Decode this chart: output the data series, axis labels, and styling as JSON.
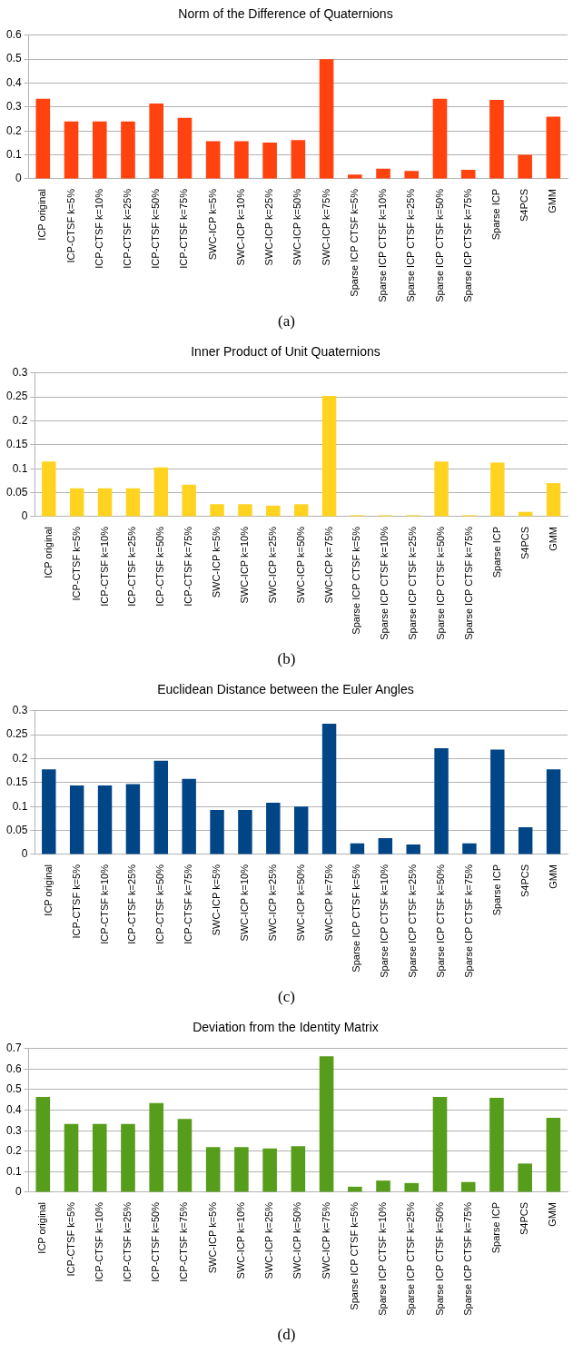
{
  "chart_data": [
    {
      "type": "bar",
      "title": "Norm of the Difference of Quaternions",
      "categories": [
        "ICP original",
        "ICP-CTSF k=5%",
        "ICP-CTSF k=10%",
        "ICP-CTSF k=25%",
        "ICP-CTSF k=50%",
        "ICP-CTSF k=75%",
        "SWC-ICP k=5%",
        "SWC-ICP k=10%",
        "SWC-ICP k=25%",
        "SWC-ICP k=50%",
        "SWC-ICP k=75%",
        "Sparse ICP CTSF k=5%",
        "Sparse ICP CTSF k=10%",
        "Sparse ICP CTSF k=25%",
        "Sparse ICP CTSF k=50%",
        "Sparse ICP CTSF k=75%",
        "Sparse ICP",
        "S4PCS",
        "GMM"
      ],
      "values": [
        0.335,
        0.24,
        0.24,
        0.24,
        0.315,
        0.255,
        0.157,
        0.157,
        0.152,
        0.162,
        0.5,
        0.018,
        0.043,
        0.033,
        0.335,
        0.038,
        0.33,
        0.1,
        0.26
      ],
      "color": "#ff420e",
      "ylim": [
        0,
        0.6
      ],
      "yticks": [
        0,
        0.1,
        0.2,
        0.3,
        0.4,
        0.5,
        0.6
      ],
      "grid": "y",
      "legend": false,
      "annotations": [
        "(a)"
      ]
    },
    {
      "type": "bar",
      "title": "Inner Product of Unit Quaternions",
      "categories": [
        "ICP original",
        "ICP-CTSF k=5%",
        "ICP-CTSF k=10%",
        "ICP-CTSF k=25%",
        "ICP-CTSF k=50%",
        "ICP-CTSF k=75%",
        "SWC-ICP k=5%",
        "SWC-ICP k=10%",
        "SWC-ICP k=25%",
        "SWC-ICP k=50%",
        "SWC-ICP k=75%",
        "Sparse ICP CTSF k=5%",
        "Sparse ICP CTSF k=10%",
        "Sparse ICP CTSF k=25%",
        "Sparse ICP CTSF k=50%",
        "Sparse ICP CTSF k=75%",
        "Sparse ICP",
        "S4PCS",
        "GMM"
      ],
      "values": [
        0.115,
        0.059,
        0.059,
        0.059,
        0.103,
        0.067,
        0.026,
        0.026,
        0.023,
        0.026,
        0.252,
        0.003,
        0.003,
        0.003,
        0.115,
        0.003,
        0.113,
        0.01,
        0.07
      ],
      "color": "#ffd320",
      "ylim": [
        0,
        0.3
      ],
      "yticks": [
        0,
        0.05,
        0.1,
        0.15,
        0.2,
        0.25,
        0.3
      ],
      "grid": "y",
      "legend": false,
      "annotations": [
        "(b)"
      ]
    },
    {
      "type": "bar",
      "title": "Euclidean Distance between the Euler Angles",
      "categories": [
        "ICP original",
        "ICP-CTSF k=5%",
        "ICP-CTSF k=10%",
        "ICP-CTSF k=25%",
        "ICP-CTSF k=50%",
        "ICP-CTSF k=75%",
        "SWC-ICP k=5%",
        "SWC-ICP k=10%",
        "SWC-ICP k=25%",
        "SWC-ICP k=50%",
        "SWC-ICP k=75%",
        "Sparse ICP CTSF k=5%",
        "Sparse ICP CTSF k=10%",
        "Sparse ICP CTSF k=25%",
        "Sparse ICP CTSF k=50%",
        "Sparse ICP CTSF k=75%",
        "Sparse ICP",
        "S4PCS",
        "GMM"
      ],
      "values": [
        0.178,
        0.144,
        0.144,
        0.147,
        0.196,
        0.158,
        0.093,
        0.093,
        0.108,
        0.1,
        0.273,
        0.023,
        0.034,
        0.021,
        0.222,
        0.023,
        0.219,
        0.057,
        0.178
      ],
      "color": "#004586",
      "ylim": [
        0,
        0.3
      ],
      "yticks": [
        0,
        0.05,
        0.1,
        0.15,
        0.2,
        0.25,
        0.3
      ],
      "grid": "y",
      "legend": false,
      "annotations": [
        "(c)"
      ]
    },
    {
      "type": "bar",
      "title": "Deviation from the Identity Matrix",
      "categories": [
        "ICP original",
        "ICP-CTSF k=5%",
        "ICP-CTSF k=10%",
        "ICP-CTSF k=25%",
        "ICP-CTSF k=50%",
        "ICP-CTSF k=75%",
        "SWC-ICP k=5%",
        "SWC-ICP k=10%",
        "SWC-ICP k=25%",
        "SWC-ICP k=50%",
        "SWC-ICP k=75%",
        "Sparse ICP CTSF k=5%",
        "Sparse ICP CTSF k=10%",
        "Sparse ICP CTSF k=25%",
        "Sparse ICP CTSF k=50%",
        "Sparse ICP CTSF k=75%",
        "Sparse ICP",
        "S4PCS",
        "GMM"
      ],
      "values": [
        0.465,
        0.333,
        0.333,
        0.333,
        0.435,
        0.357,
        0.22,
        0.22,
        0.213,
        0.225,
        0.663,
        0.027,
        0.057,
        0.045,
        0.465,
        0.05,
        0.46,
        0.14,
        0.363
      ],
      "color": "#579d1c",
      "ylim": [
        0,
        0.7
      ],
      "yticks": [
        0,
        0.1,
        0.2,
        0.3,
        0.4,
        0.5,
        0.6,
        0.7
      ],
      "grid": "y",
      "legend": false,
      "annotations": [
        "(d)"
      ]
    }
  ]
}
